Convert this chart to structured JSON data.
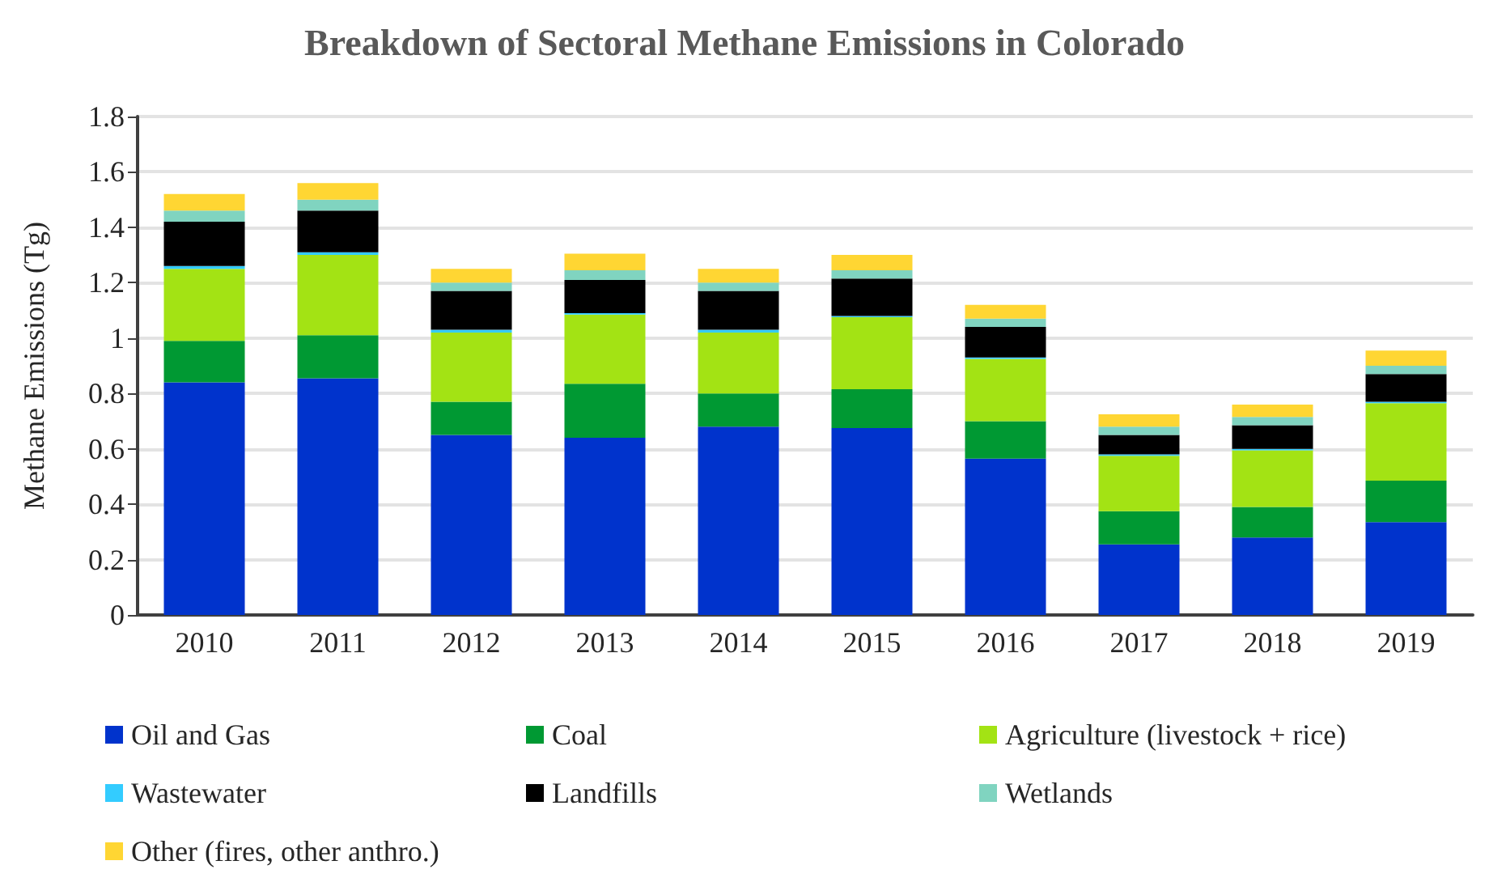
{
  "chart_data": {
    "type": "bar",
    "title": "Breakdown of Sectoral Methane Emissions in Colorado",
    "ylabel": "Methane Emissions (Tg)",
    "categories": [
      "2010",
      "2011",
      "2012",
      "2013",
      "2014",
      "2015",
      "2016",
      "2017",
      "2018",
      "2019"
    ],
    "stacked": true,
    "ylim": [
      0,
      1.8
    ],
    "yticks": [
      0,
      0.2,
      0.4,
      0.6,
      0.8,
      {
        "value": 1,
        "label": "1"
      },
      1.2,
      1.4,
      1.6,
      1.8
    ],
    "grid": "y",
    "legend": "bottom",
    "series": [
      {
        "name": "Oil and Gas",
        "color": "#0033cc",
        "values": [
          0.84,
          0.855,
          0.65,
          0.64,
          0.68,
          0.675,
          0.565,
          0.255,
          0.28,
          0.335
        ]
      },
      {
        "name": "Coal",
        "color": "#009933",
        "values": [
          0.15,
          0.155,
          0.12,
          0.195,
          0.12,
          0.14,
          0.135,
          0.12,
          0.11,
          0.15
        ]
      },
      {
        "name": "Agriculture (livestock + rice)",
        "color": "#a3e314",
        "values": [
          0.26,
          0.29,
          0.25,
          0.25,
          0.22,
          0.26,
          0.225,
          0.2,
          0.205,
          0.28
        ]
      },
      {
        "name": "Wastewater",
        "color": "#33ccff",
        "values": [
          0.01,
          0.01,
          0.01,
          0.005,
          0.01,
          0.005,
          0.005,
          0.005,
          0.005,
          0.005
        ]
      },
      {
        "name": "Landfills",
        "color": "#000000",
        "values": [
          0.16,
          0.15,
          0.14,
          0.12,
          0.14,
          0.135,
          0.11,
          0.07,
          0.085,
          0.1
        ]
      },
      {
        "name": "Wetlands",
        "color": "#80d4c0",
        "values": [
          0.04,
          0.04,
          0.03,
          0.035,
          0.03,
          0.03,
          0.03,
          0.03,
          0.03,
          0.03
        ]
      },
      {
        "name": "Other (fires, other anthro.)",
        "color": "#ffd633",
        "values": [
          0.06,
          0.06,
          0.05,
          0.06,
          0.05,
          0.055,
          0.05,
          0.045,
          0.045,
          0.055
        ]
      }
    ]
  }
}
